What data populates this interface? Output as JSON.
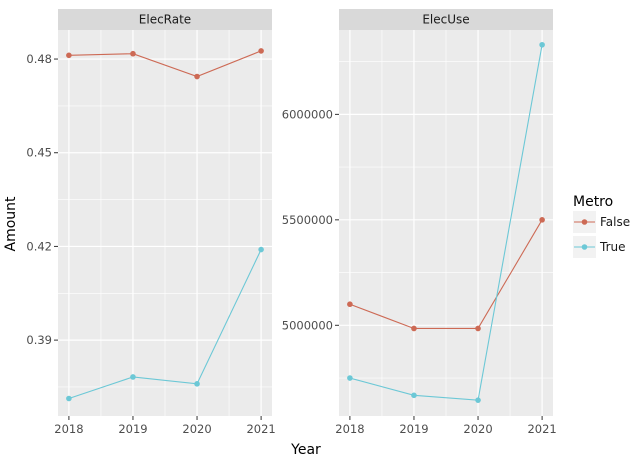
{
  "chart_data": {
    "type": "line",
    "xlabel": "Year",
    "ylabel": "Amount",
    "x": [
      2018,
      2019,
      2020,
      2021
    ],
    "legend": {
      "title": "Metro",
      "position": "right",
      "entries": [
        {
          "label": "False",
          "color": "#cd6a55"
        },
        {
          "label": "True",
          "color": "#6cc8d6"
        }
      ]
    },
    "panels": [
      {
        "strip": "ElecRate",
        "ylim": [
          0.3657,
          0.4893
        ],
        "yticks": [
          0.39,
          0.42,
          0.45,
          0.48
        ],
        "ytick_labels": [
          "0.39",
          "0.42",
          "0.45",
          "0.48"
        ],
        "series": [
          {
            "name": "False",
            "color": "#cd6a55",
            "values": [
              0.4812,
              0.4817,
              0.4744,
              0.4826
            ]
          },
          {
            "name": "True",
            "color": "#6cc8d6",
            "values": [
              0.3713,
              0.3782,
              0.376,
              0.419
            ]
          }
        ]
      },
      {
        "strip": "ElecUse",
        "ylim": [
          4570000,
          6400000
        ],
        "yticks": [
          5000000,
          5500000,
          6000000
        ],
        "ytick_labels": [
          "5000000",
          "5500000",
          "6000000"
        ],
        "series": [
          {
            "name": "False",
            "color": "#cd6a55",
            "values": [
              5100000,
              4985000,
              4985000,
              5500000
            ]
          },
          {
            "name": "True",
            "color": "#6cc8d6",
            "values": [
              4750000,
              4668000,
              4645000,
              6330000
            ]
          }
        ]
      }
    ],
    "grid": true
  }
}
